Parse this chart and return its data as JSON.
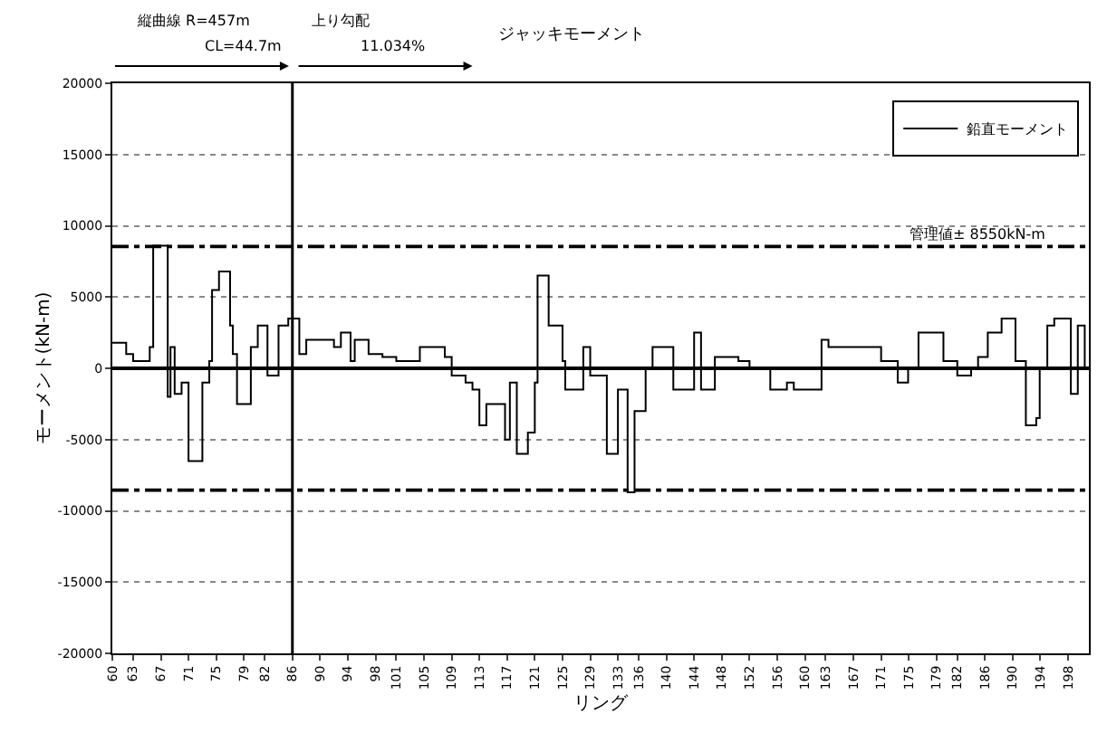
{
  "chart_data": {
    "type": "step",
    "title": "ジャッキモーメント",
    "xlabel": "リング",
    "ylabel": "モーメント(kN-m)",
    "annotations": [
      "縦曲線 R=457m",
      "CL=44.7m",
      "上り勾配",
      "11.034%"
    ],
    "series": [
      {
        "name": "鉛直モーメント",
        "color": "#000000",
        "x": [
          60,
          62,
          63,
          65.4,
          65.9,
          68,
          68.4,
          69,
          70,
          71,
          73,
          74,
          74.4,
          75.4,
          77,
          77.4,
          78,
          80,
          81,
          82.4,
          84,
          85.4,
          87,
          88,
          92,
          93,
          94.4,
          95,
          97,
          99,
          101,
          104.4,
          108,
          109,
          111,
          112,
          113,
          114,
          116.7,
          117.4,
          118.4,
          120,
          121,
          121.4,
          123,
          125,
          125.4,
          128,
          129,
          131.4,
          133,
          134.4,
          135.4,
          137,
          138,
          141,
          144,
          145,
          147,
          150.4,
          152,
          155,
          157.4,
          158.4,
          162.4,
          163.4,
          171,
          173.4,
          174.9,
          176.4,
          180,
          182,
          184,
          185,
          186.4,
          188.4,
          190.4,
          191.9,
          193.4,
          193.9,
          195,
          196,
          198.4,
          199.4,
          200.4
        ],
        "values": [
          1800,
          1000,
          500,
          1500,
          8600,
          -2000,
          1500,
          -1800,
          -1000,
          -6500,
          -1000,
          500,
          5500,
          6800,
          3000,
          1000,
          -2500,
          1500,
          3000,
          -500,
          3000,
          3500,
          1000,
          2000,
          1500,
          2500,
          500,
          2000,
          1000,
          800,
          500,
          1500,
          800,
          -500,
          -1000,
          -1500,
          -4000,
          -2500,
          -5000,
          -1000,
          -6000,
          -4500,
          -1000,
          6500,
          3000,
          500,
          -1500,
          1500,
          -500,
          -6000,
          -1500,
          -8700,
          -3000,
          0,
          1500,
          -1500,
          2500,
          -1500,
          800,
          500,
          0,
          -1500,
          -1000,
          -1500,
          2000,
          1500,
          500,
          -1000,
          0,
          2500,
          500,
          -500,
          0,
          800,
          2500,
          3500,
          500,
          -4000,
          -3500,
          0,
          3000,
          3500,
          -1800,
          3000,
          0
        ]
      }
    ],
    "xlim": [
      60,
      201
    ],
    "xticks": [
      60,
      63,
      67,
      71,
      75,
      79,
      82,
      86,
      90,
      94,
      98,
      101,
      105,
      109,
      113,
      117,
      121,
      125,
      129,
      133,
      136,
      140,
      144,
      148,
      152,
      156,
      160,
      163,
      167,
      171,
      175,
      179,
      182,
      186,
      190,
      194,
      198
    ],
    "ylim": [
      -20000,
      20000
    ],
    "yticks": [
      -20000,
      -15000,
      -10000,
      -5000,
      0,
      5000,
      10000,
      15000,
      20000
    ],
    "ref_lines": [
      {
        "axis": "y",
        "value": 8550,
        "label": "管理値± 8550kN-m",
        "line_style": "dashdot",
        "color": "#000000"
      },
      {
        "axis": "y",
        "value": -8550,
        "line_style": "dashdot",
        "color": "#000000"
      },
      {
        "axis": "y",
        "value": 0,
        "line_style": "solid",
        "color": "#000000"
      },
      {
        "axis": "x",
        "value": 86,
        "line_style": "solid",
        "color": "#000000"
      }
    ],
    "grid": "y",
    "legend": "top right",
    "marker": "none",
    "line_style": "solid"
  }
}
